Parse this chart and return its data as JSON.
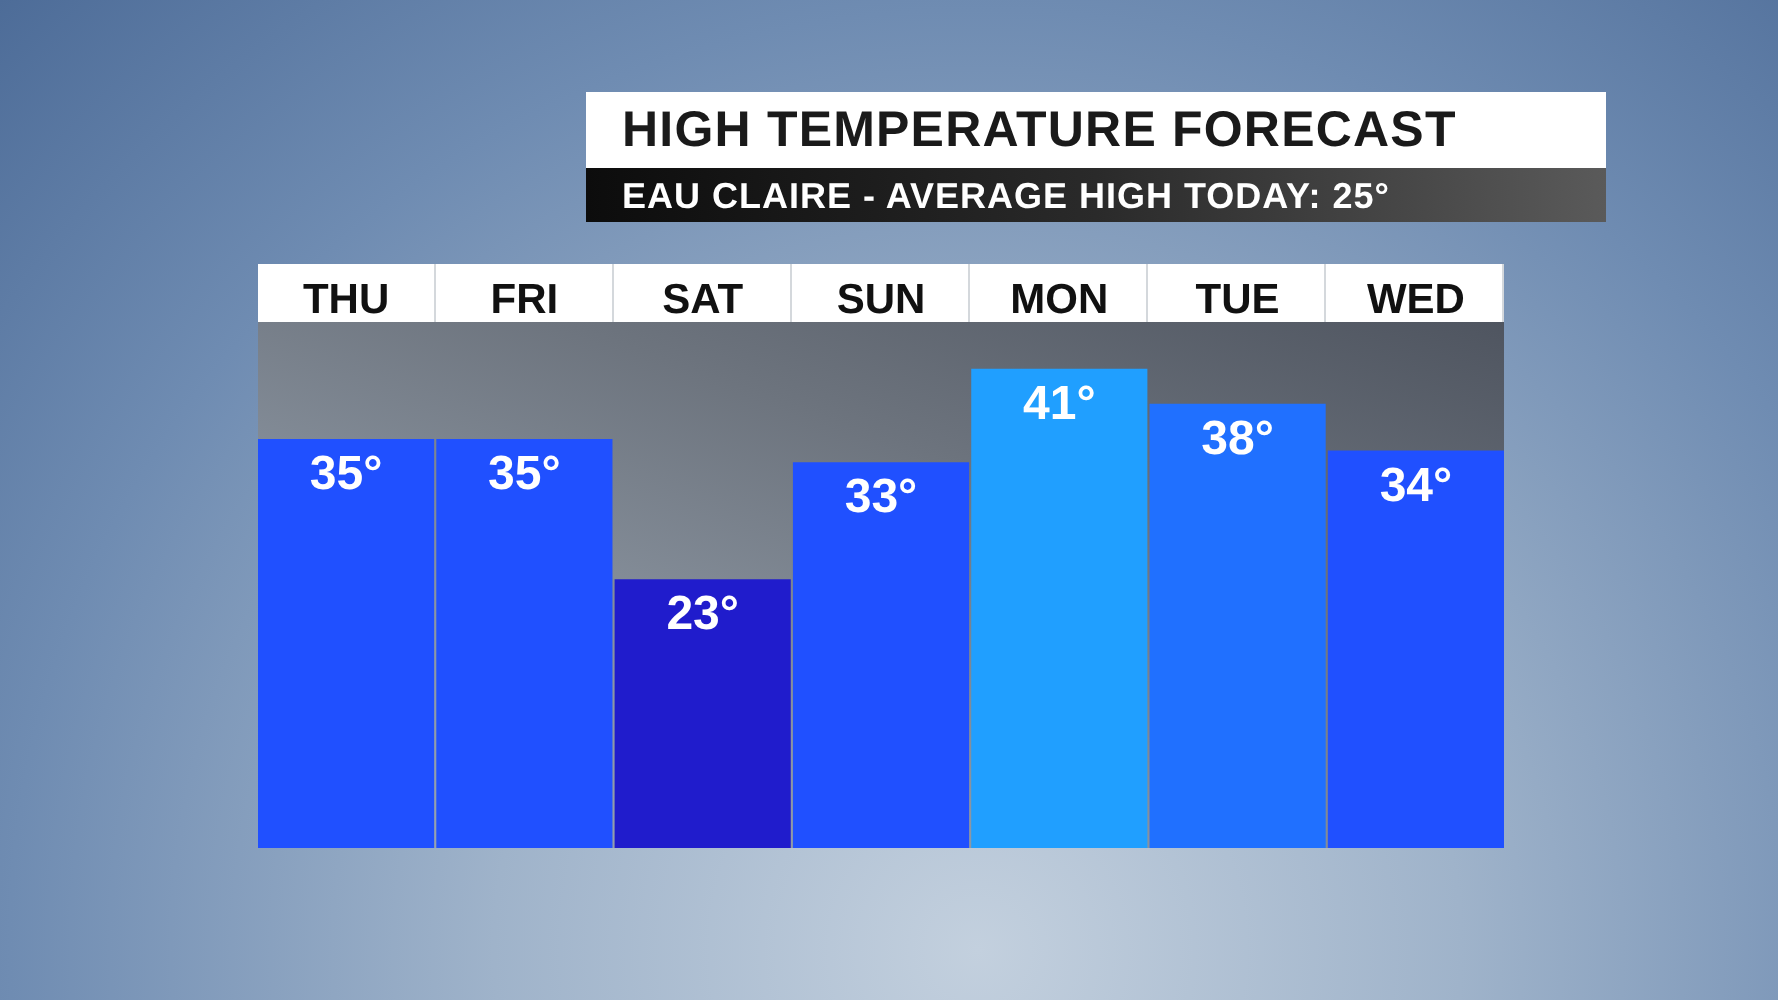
{
  "chart_data": {
    "type": "bar",
    "title": "HIGH TEMPERATURE FORECAST",
    "subtitle": "EAU CLAIRE - AVERAGE HIGH TODAY: 25°",
    "categories": [
      "THU",
      "FRI",
      "SAT",
      "SUN",
      "MON",
      "TUE",
      "WED"
    ],
    "values": [
      35,
      35,
      23,
      33,
      41,
      38,
      34
    ],
    "colors": [
      "#2050ff",
      "#2050ff",
      "#201ccc",
      "#2050ff",
      "#209fff",
      "#2070ff",
      "#2050ff"
    ],
    "value_labels": [
      "35°",
      "35°",
      "23°",
      "33°",
      "41°",
      "38°",
      "34°"
    ],
    "tick_labels": "x"
  }
}
